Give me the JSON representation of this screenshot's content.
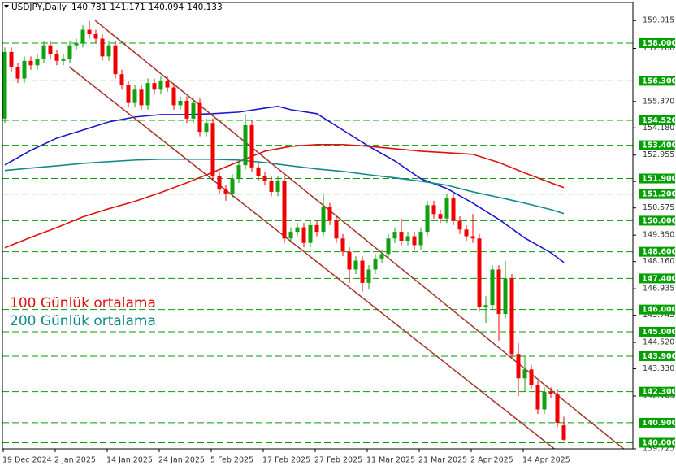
{
  "chart_data": {
    "type": "candlestick",
    "title": "USDJPY,Daily",
    "categories": [
      "19 Dec 2024",
      null,
      null,
      null,
      null,
      null,
      null,
      null,
      "2 Jan 2025",
      null,
      null,
      null,
      null,
      null,
      null,
      null,
      "14 Jan 2025",
      null,
      null,
      null,
      null,
      null,
      null,
      null,
      "24 Jan 2025",
      null,
      null,
      null,
      null,
      null,
      null,
      null,
      "5 Feb 2025",
      null,
      null,
      null,
      null,
      null,
      null,
      null,
      "17 Feb 2025",
      null,
      null,
      null,
      null,
      null,
      null,
      null,
      "27 Feb 2025",
      null,
      null,
      null,
      null,
      null,
      null,
      null,
      "11 Mar 2025",
      null,
      null,
      null,
      null,
      null,
      null,
      null,
      "21 Mar 2025",
      null,
      null,
      null,
      null,
      null,
      null,
      null,
      "2 Apr 2025",
      null,
      null,
      null,
      null,
      null,
      null,
      null,
      "14 Apr 2025",
      null,
      null,
      null,
      null,
      null,
      null
    ],
    "open": [
      154.6,
      157.6,
      156.9,
      156.4,
      157.2,
      157.0,
      157.3,
      157.9,
      157.5,
      157.2,
      157.3,
      157.9,
      158.0,
      158.6,
      158.4,
      158.2,
      157.4,
      157.9,
      156.6,
      156.1,
      155.3,
      155.9,
      155.2,
      156.2,
      155.9,
      156.3,
      156.0,
      155.2,
      155.4,
      154.6,
      155.3,
      154.0,
      154.4,
      152.0,
      151.4,
      151.2,
      151.9,
      152.5,
      154.3,
      152.4,
      152.0,
      151.8,
      151.3,
      151.8,
      149.2,
      149.5,
      149.7,
      149.0,
      149.8,
      149.5,
      150.6,
      150.0,
      149.2,
      148.6,
      147.8,
      148.2,
      147.2,
      147.8,
      148.3,
      148.5,
      149.2,
      149.5,
      149.1,
      149.3,
      148.9,
      149.5,
      150.7,
      150.3,
      150.1,
      151.0,
      150.0,
      149.6,
      149.3,
      149.2,
      146.1,
      146.2,
      147.8,
      145.8,
      147.4,
      144.0,
      142.9,
      143.3,
      142.6,
      141.5,
      142.3,
      142.2,
      140.781
    ],
    "high": [
      157.8,
      157.8,
      157.1,
      157.4,
      157.4,
      157.5,
      158.1,
      158.1,
      157.7,
      157.5,
      158.1,
      158.2,
      158.8,
      159.0,
      158.6,
      158.4,
      158.1,
      158.1,
      156.8,
      156.3,
      156.1,
      156.1,
      156.4,
      156.4,
      156.5,
      156.5,
      156.2,
      155.6,
      155.6,
      155.5,
      155.5,
      154.6,
      154.6,
      152.2,
      151.6,
      152.1,
      152.7,
      154.8,
      154.5,
      152.6,
      152.2,
      152.0,
      152.0,
      152.0,
      149.7,
      149.9,
      149.9,
      150.0,
      150.0,
      151.2,
      150.8,
      150.2,
      149.4,
      148.8,
      148.4,
      148.4,
      148.0,
      148.5,
      148.7,
      149.4,
      149.7,
      150.1,
      149.5,
      149.5,
      149.7,
      150.9,
      150.9,
      150.5,
      151.2,
      151.2,
      150.2,
      149.8,
      150.3,
      149.4,
      146.6,
      148.0,
      148.0,
      148.2,
      147.6,
      144.5,
      143.9,
      143.5,
      142.8,
      142.5,
      142.5,
      142.4,
      141.171
    ],
    "low": [
      154.4,
      156.7,
      156.2,
      156.2,
      156.8,
      156.8,
      157.1,
      157.3,
      157.0,
      157.0,
      157.1,
      157.7,
      157.8,
      158.2,
      158.0,
      157.2,
      157.2,
      156.4,
      155.9,
      155.1,
      155.1,
      155.0,
      155.0,
      155.7,
      155.7,
      155.8,
      155.0,
      155.0,
      154.4,
      154.4,
      153.8,
      153.8,
      151.8,
      151.2,
      150.9,
      151.0,
      151.7,
      152.3,
      152.2,
      151.8,
      151.6,
      151.1,
      151.1,
      149.0,
      149.0,
      149.3,
      148.8,
      148.8,
      149.3,
      149.3,
      149.8,
      149.0,
      148.4,
      147.2,
      147.6,
      146.8,
      146.9,
      147.6,
      148.1,
      148.3,
      149.0,
      148.9,
      148.9,
      148.7,
      148.7,
      149.3,
      150.1,
      149.9,
      149.9,
      149.8,
      149.4,
      149.1,
      149.0,
      145.9,
      145.4,
      146.0,
      144.6,
      145.6,
      143.8,
      142.1,
      142.3,
      142.4,
      141.3,
      141.3,
      142.0,
      140.7,
      140.094
    ],
    "close": [
      157.6,
      156.9,
      156.4,
      157.2,
      157.0,
      157.3,
      157.9,
      157.5,
      157.2,
      157.3,
      157.9,
      158.0,
      158.6,
      158.4,
      158.2,
      157.4,
      157.9,
      156.6,
      156.1,
      155.3,
      155.9,
      155.2,
      156.2,
      155.9,
      156.3,
      156.0,
      155.2,
      155.4,
      154.6,
      155.3,
      154.0,
      154.4,
      152.0,
      151.4,
      151.2,
      151.9,
      152.5,
      154.3,
      152.4,
      152.0,
      151.8,
      151.3,
      151.8,
      149.2,
      149.5,
      149.7,
      149.0,
      149.8,
      149.5,
      150.6,
      150.0,
      149.2,
      148.6,
      147.8,
      148.2,
      147.2,
      147.8,
      148.3,
      148.5,
      149.2,
      149.5,
      149.1,
      149.3,
      148.9,
      149.5,
      150.7,
      150.3,
      150.1,
      151.0,
      150.0,
      149.6,
      149.3,
      149.2,
      146.1,
      146.2,
      147.8,
      145.8,
      147.4,
      144.0,
      142.9,
      143.3,
      142.6,
      141.5,
      142.3,
      142.2,
      140.9,
      140.133
    ],
    "up_color": "#10a010",
    "down_color": "#f00000",
    "lines": [
      {
        "color": "#1818d0",
        "x": [
          0,
          4,
          8,
          12,
          16,
          20,
          24,
          28,
          32,
          36,
          40,
          42,
          44,
          48,
          52,
          56,
          60,
          64,
          68,
          72,
          76,
          80,
          84,
          86
        ],
        "values": [
          152.51,
          153.17,
          153.72,
          154.08,
          154.45,
          154.67,
          154.78,
          154.78,
          154.82,
          154.89,
          155.07,
          155.15,
          155.0,
          154.82,
          154.08,
          153.35,
          152.69,
          151.89,
          151.45,
          150.79,
          150.06,
          149.22,
          148.56,
          148.12
        ]
      },
      {
        "name": "100 Günlük ortalama",
        "color": "#e01010",
        "x": [
          0,
          4,
          8,
          12,
          16,
          20,
          24,
          28,
          32,
          36,
          40,
          44,
          48,
          52,
          56,
          60,
          64,
          68,
          72,
          76,
          80,
          84,
          86
        ],
        "values": [
          148.78,
          149.25,
          149.69,
          150.17,
          150.54,
          150.87,
          151.27,
          151.71,
          152.18,
          152.66,
          153.13,
          153.35,
          153.43,
          153.43,
          153.35,
          153.24,
          153.13,
          153.06,
          152.99,
          152.62,
          152.15,
          151.71,
          151.49
        ]
      },
      {
        "name": "200 Günlük ortalama",
        "color": "#138a8a",
        "x": [
          0,
          4,
          8,
          12,
          16,
          20,
          24,
          28,
          32,
          36,
          40,
          44,
          48,
          52,
          56,
          60,
          64,
          68,
          72,
          76,
          80,
          84,
          86
        ],
        "values": [
          152.26,
          152.37,
          152.47,
          152.58,
          152.66,
          152.73,
          152.77,
          152.77,
          152.77,
          152.73,
          152.62,
          152.47,
          152.33,
          152.22,
          152.07,
          151.93,
          151.78,
          151.6,
          151.3,
          151.05,
          150.79,
          150.5,
          150.32
        ]
      }
    ],
    "ylim": [
      139.725,
      159.573
    ],
    "yticks": [
      {
        "value": 159.015,
        "label": "159.015"
      },
      {
        "value": 157.76,
        "label": "157.760"
      },
      {
        "value": 155.37,
        "label": "155.370"
      },
      {
        "value": 154.18,
        "label": "154.180"
      },
      {
        "value": 152.955,
        "label": "152.955"
      },
      {
        "value": 151.765,
        "label": "151.765"
      },
      {
        "value": 150.575,
        "label": "150.575"
      },
      {
        "value": 149.35,
        "label": "149.350"
      },
      {
        "value": 148.16,
        "label": "148.160"
      },
      {
        "value": 146.935,
        "label": "146.935"
      },
      {
        "value": 145.745,
        "label": "145.745"
      },
      {
        "value": 144.52,
        "label": "144.520"
      },
      {
        "value": 143.33,
        "label": "143.330"
      },
      {
        "value": 142.105,
        "label": "142.105"
      },
      {
        "value": 139.725,
        "label": "139.725"
      }
    ],
    "levels": [
      {
        "value": 158,
        "label": "158.000"
      },
      {
        "value": 156.3,
        "label": "156.300"
      },
      {
        "value": 154.52,
        "label": "154.520"
      },
      {
        "value": 153.4,
        "label": "153.400"
      },
      {
        "value": 151.9,
        "label": "151.900"
      },
      {
        "value": 151.2,
        "label": "151.200"
      },
      {
        "value": 150,
        "label": "150.000"
      },
      {
        "value": 148.6,
        "label": "148.600"
      },
      {
        "value": 147.4,
        "label": "147.400"
      },
      {
        "value": 146,
        "label": "146.000"
      },
      {
        "value": 145,
        "label": "145.000"
      },
      {
        "value": 143.9,
        "label": "143.900"
      },
      {
        "value": 142.3,
        "label": "142.300"
      },
      {
        "value": 140.9,
        "label": "140.900"
      },
      {
        "value": 140,
        "label": "140.000"
      }
    ],
    "level_color": "#00a000"
  }
}
